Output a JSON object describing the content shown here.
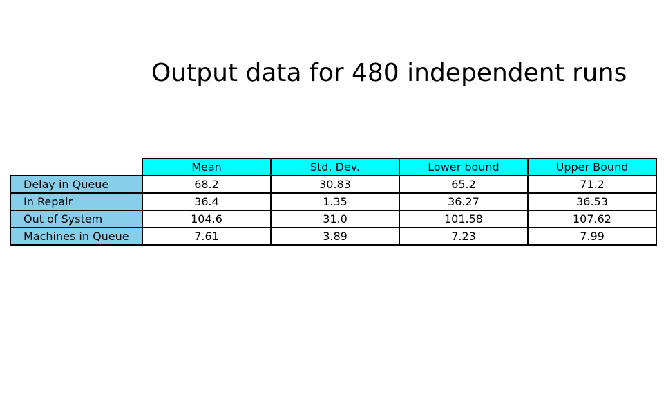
{
  "chart_data": {
    "type": "table",
    "title": "Output data for 480 independent runs",
    "columns": [
      "Mean",
      "Std. Dev.",
      "Lower bound",
      "Upper Bound"
    ],
    "rows": [
      {
        "label": "Delay in Queue",
        "values": [
          "68.2",
          "30.83",
          "65.2",
          "71.2"
        ]
      },
      {
        "label": "In Repair",
        "values": [
          "36.4",
          "1.35",
          "36.27",
          "36.53"
        ]
      },
      {
        "label": "Out of System",
        "values": [
          "104.6",
          "31.0",
          "101.58",
          "107.62"
        ]
      },
      {
        "label": "Machines in Queue",
        "values": [
          "7.61",
          "3.89",
          "7.23",
          "7.99"
        ]
      }
    ]
  },
  "colors": {
    "column_header_bg": "#00ffff",
    "row_header_bg": "#87ceeb",
    "cell_bg": "#ffffff",
    "border": "#000000"
  }
}
